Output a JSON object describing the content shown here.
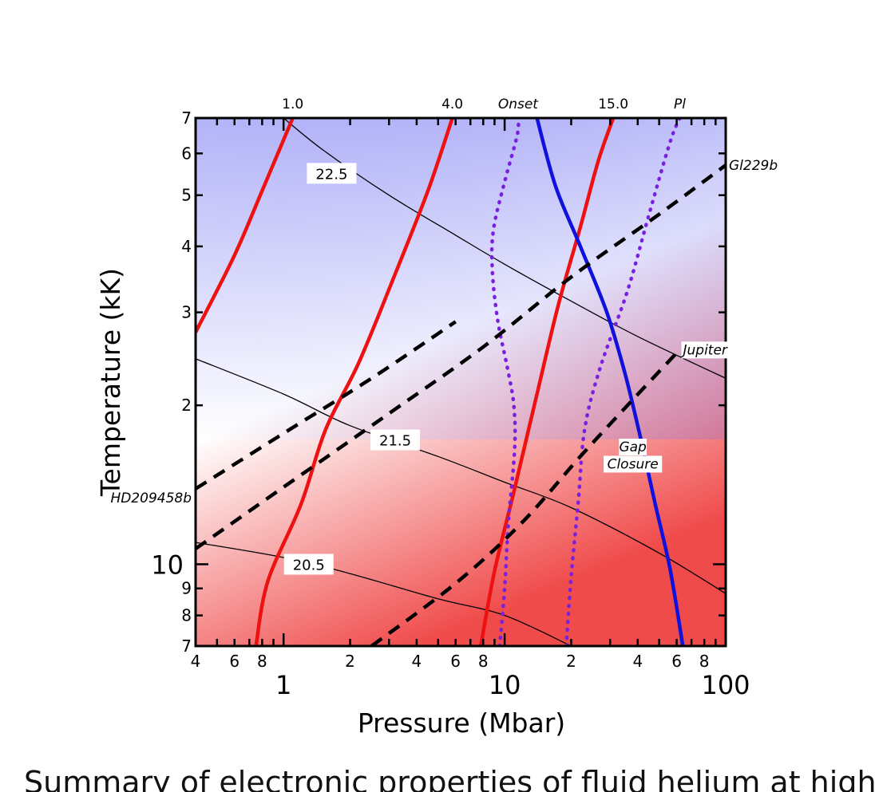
{
  "chart_data": {
    "type": "line",
    "title": "",
    "xlabel": "Pressure (Mbar)",
    "ylabel": "Temperature (kK)",
    "x_scale": "log",
    "y_scale": "log",
    "xlim": [
      0.4,
      100
    ],
    "ylim": [
      0.7,
      7
    ],
    "x_major_ticks": [
      {
        "v": 1,
        "label": "1"
      },
      {
        "v": 10,
        "label": "10"
      },
      {
        "v": 100,
        "label": "100"
      }
    ],
    "x_minor_ticks": [
      {
        "v": 0.4,
        "label": "4"
      },
      {
        "v": 0.6,
        "label": "6"
      },
      {
        "v": 0.8,
        "label": "8"
      },
      {
        "v": 2,
        "label": "2"
      },
      {
        "v": 4,
        "label": "4"
      },
      {
        "v": 6,
        "label": "6"
      },
      {
        "v": 8,
        "label": "8"
      },
      {
        "v": 20,
        "label": "2"
      },
      {
        "v": 40,
        "label": "4"
      },
      {
        "v": 60,
        "label": "6"
      },
      {
        "v": 80,
        "label": "8"
      }
    ],
    "y_major_ticks": [
      {
        "v": 1,
        "label": "10"
      }
    ],
    "y_minor_ticks": [
      {
        "v": 0.7,
        "label": "7"
      },
      {
        "v": 0.8,
        "label": "8"
      },
      {
        "v": 0.9,
        "label": "9"
      },
      {
        "v": 2,
        "label": "2"
      },
      {
        "v": 3,
        "label": "3"
      },
      {
        "v": 4,
        "label": "4"
      },
      {
        "v": 5,
        "label": "5"
      },
      {
        "v": 6,
        "label": "6"
      },
      {
        "v": 7,
        "label": "7"
      }
    ],
    "background": {
      "low_color": "#f04b4b",
      "mid_color": "#ffffff",
      "high_color": "#8a8af5"
    },
    "series": [
      {
        "name": "1.0",
        "style": "red-solid",
        "color": "#ee1111",
        "points": [
          [
            0.4,
            2.75
          ],
          [
            0.6,
            3.85
          ],
          [
            0.8,
            5.1
          ],
          [
            1.1,
            7.0
          ]
        ]
      },
      {
        "name": "4.0",
        "style": "red-solid",
        "color": "#ee1111",
        "points": [
          [
            0.75,
            0.7
          ],
          [
            0.85,
            0.93
          ],
          [
            1.2,
            1.3
          ],
          [
            1.55,
            1.8
          ],
          [
            2.2,
            2.42
          ],
          [
            3.2,
            3.55
          ],
          [
            4.5,
            5.1
          ],
          [
            5.8,
            7.0
          ]
        ]
      },
      {
        "name": "15.0",
        "style": "red-solid",
        "color": "#ee1111",
        "points": [
          [
            7.8,
            0.7
          ],
          [
            9.0,
            0.97
          ],
          [
            11.0,
            1.37
          ],
          [
            14.0,
            2.1
          ],
          [
            17.5,
            3.1
          ],
          [
            22.0,
            4.35
          ],
          [
            26.5,
            5.8
          ],
          [
            31.0,
            7.0
          ]
        ]
      },
      {
        "name": "Onset",
        "style": "purple-dotted",
        "color": "#7a1fe0",
        "points": [
          [
            9.5,
            0.7
          ],
          [
            10.0,
            0.9
          ],
          [
            10.4,
            1.2
          ],
          [
            11.1,
            1.65
          ],
          [
            11.0,
            2.0
          ],
          [
            10.3,
            2.35
          ],
          [
            9.3,
            2.9
          ],
          [
            8.8,
            3.6
          ],
          [
            8.9,
            4.3
          ],
          [
            10.0,
            5.3
          ],
          [
            11.4,
            6.5
          ],
          [
            11.5,
            7.0
          ]
        ]
      },
      {
        "name": "Pl",
        "style": "purple-dotted",
        "color": "#7a1fe0",
        "points": [
          [
            19.0,
            0.7
          ],
          [
            20.0,
            0.95
          ],
          [
            21.5,
            1.3
          ],
          [
            23.0,
            1.8
          ],
          [
            27.0,
            2.35
          ],
          [
            36.0,
            3.3
          ],
          [
            45.0,
            4.6
          ],
          [
            56.0,
            6.3
          ],
          [
            62.0,
            7.0
          ]
        ]
      },
      {
        "name": "Gap Closure",
        "style": "blue-solid",
        "color": "#1111dd",
        "points": [
          [
            14.0,
            7.0
          ],
          [
            17.0,
            5.2
          ],
          [
            22.0,
            4.0
          ],
          [
            29.0,
            3.0
          ],
          [
            35.0,
            2.3
          ],
          [
            41.0,
            1.75
          ],
          [
            48.0,
            1.3
          ],
          [
            56.0,
            0.98
          ],
          [
            64.0,
            0.7
          ]
        ]
      },
      {
        "name": "HD209458b",
        "style": "black-dashed",
        "color": "#000000",
        "points": [
          [
            0.4,
            1.39
          ],
          [
            1.0,
            1.77
          ],
          [
            2.5,
            2.25
          ],
          [
            6.0,
            2.88
          ]
        ]
      },
      {
        "name": "Jupiter",
        "style": "black-dashed",
        "color": "#000000",
        "points": [
          [
            2.5,
            0.7
          ],
          [
            6.0,
            0.92
          ],
          [
            12.0,
            1.2
          ],
          [
            22.0,
            1.6
          ],
          [
            38.0,
            2.05
          ],
          [
            62.0,
            2.55
          ]
        ]
      },
      {
        "name": "Gl229b",
        "style": "black-dashed",
        "color": "#000000",
        "points": [
          [
            0.4,
            1.07
          ],
          [
            1.0,
            1.4
          ],
          [
            3.0,
            1.93
          ],
          [
            8.0,
            2.58
          ],
          [
            20.0,
            3.5
          ],
          [
            50.0,
            4.6
          ],
          [
            100.0,
            5.7
          ]
        ]
      }
    ],
    "contours": [
      {
        "label": "22.5",
        "label_at": [
          1.65,
          5.5
        ],
        "points": [
          [
            1.0,
            7.0
          ],
          [
            1.5,
            6.1
          ],
          [
            3.0,
            5.0
          ],
          [
            6.0,
            4.2
          ],
          [
            10.0,
            3.7
          ],
          [
            20.0,
            3.15
          ],
          [
            40.0,
            2.7
          ],
          [
            100.0,
            2.25
          ]
        ]
      },
      {
        "label": "21.5",
        "label_at": [
          3.2,
          1.72
        ],
        "points": [
          [
            0.4,
            2.45
          ],
          [
            1.0,
            2.1
          ],
          [
            2.0,
            1.83
          ],
          [
            5.0,
            1.6
          ],
          [
            10.0,
            1.43
          ],
          [
            20.0,
            1.28
          ],
          [
            50.0,
            1.05
          ],
          [
            100.0,
            0.88
          ]
        ]
      },
      {
        "label": "20.5",
        "label_at": [
          1.3,
          1.0
        ],
        "points": [
          [
            0.4,
            1.1
          ],
          [
            1.0,
            1.03
          ],
          [
            2.0,
            0.96
          ],
          [
            5.0,
            0.86
          ],
          [
            10.0,
            0.8
          ],
          [
            20.0,
            0.7
          ]
        ]
      }
    ],
    "annotations": [
      {
        "text": "1.0",
        "at": [
          1.1,
          7.0
        ],
        "position": "top"
      },
      {
        "text": "4.0",
        "at": [
          5.8,
          7.0
        ],
        "position": "top"
      },
      {
        "text": "Onset",
        "at": [
          11.5,
          7.0
        ],
        "position": "top",
        "italic": true
      },
      {
        "text": "15.0",
        "at": [
          31.0,
          7.0
        ],
        "position": "top"
      },
      {
        "text": "Pl",
        "at": [
          62.0,
          7.0
        ],
        "position": "top",
        "italic": true
      },
      {
        "text": "Gl229b",
        "at": [
          100.0,
          5.7
        ],
        "position": "right",
        "italic": true
      },
      {
        "text": "Jupiter",
        "at": [
          62.0,
          2.55
        ],
        "position": "right",
        "italic": true
      },
      {
        "text": "HD209458b",
        "at": [
          0.4,
          1.39
        ],
        "position": "left",
        "italic": true
      },
      {
        "text": "Gap",
        "at": [
          38.0,
          1.67
        ],
        "position": "inside",
        "italic": true
      },
      {
        "text": "Closure",
        "at": [
          38.0,
          1.55
        ],
        "position": "inside",
        "italic": true
      }
    ]
  },
  "caption": "Summary of electronic properties of fluid helium at high p"
}
